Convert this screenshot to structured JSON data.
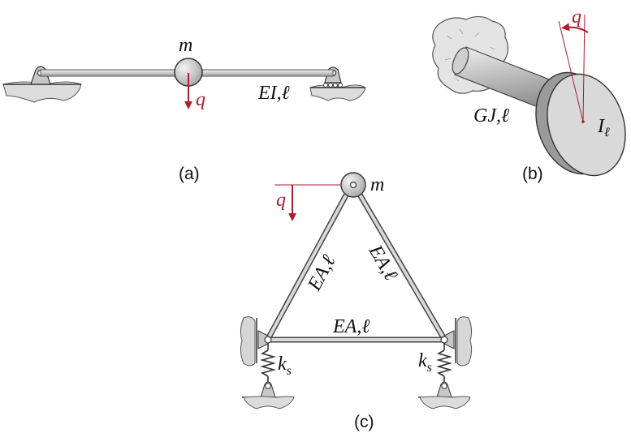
{
  "colors": {
    "accent_red": "#b01c2e",
    "metal_light": "#e6e6e6",
    "metal_mid": "#b9b9b9",
    "ink": "#222222",
    "ground": "#d9d9d9"
  },
  "panel_a": {
    "caption": "(a)",
    "mass_label": "m",
    "dof_label": "q",
    "beam_label": "EI,ℓ"
  },
  "panel_b": {
    "caption": "(b)",
    "dof_label": "q",
    "shaft_label": "GJ,ℓ",
    "inertia_label": "I",
    "inertia_sub": "ℓ"
  },
  "panel_c": {
    "caption": "(c)",
    "mass_label": "m",
    "dof_label": "q",
    "left_bar_label": "EA,ℓ",
    "right_bar_label": "EA,ℓ",
    "bottom_bar_label": "EA,ℓ",
    "spring_left_label": "k",
    "spring_left_sub": "s",
    "spring_right_label": "k",
    "spring_right_sub": "s"
  }
}
